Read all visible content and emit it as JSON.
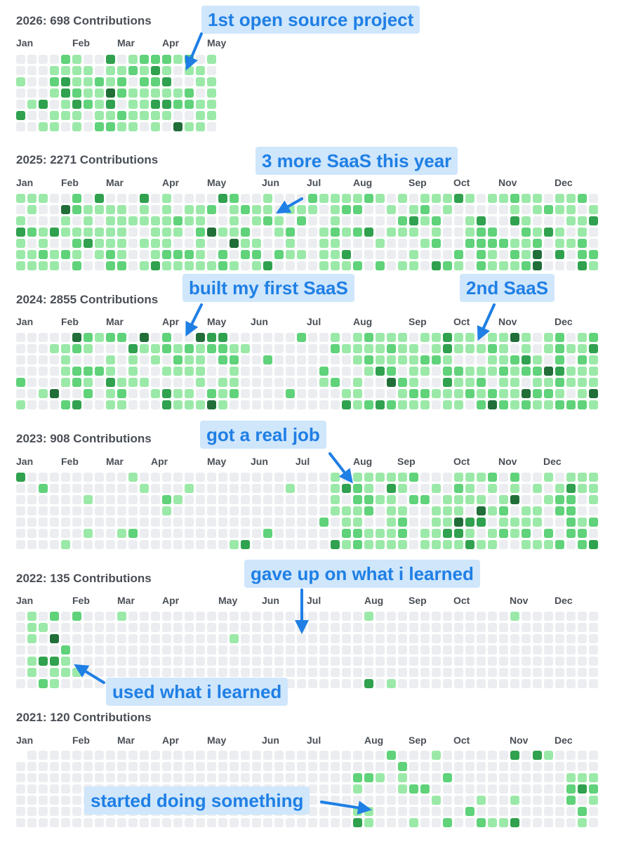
{
  "colors": {
    "empty": "#ebedf0",
    "level1": "#9be9a8",
    "level2": "#5fd27a",
    "level3": "#30a14e",
    "level4": "#216e39",
    "callout_bg": "#cfe6fb",
    "callout_text": "#1f7fe5"
  },
  "years": [
    {
      "title": "2026: 698 Contributions",
      "weeks": 18,
      "months": [
        "Jan",
        "Feb",
        "Mar",
        "Apr",
        "May"
      ]
    },
    {
      "title": "2025: 2271 Contributions",
      "weeks": 52,
      "months": [
        "Jan",
        "Feb",
        "Mar",
        "Apr",
        "May",
        "Jun",
        "Jul",
        "Aug",
        "Sep",
        "Oct",
        "Nov",
        "Dec"
      ]
    },
    {
      "title": "2024: 2855 Contributions",
      "weeks": 52,
      "months": [
        "Jan",
        "Feb",
        "Mar",
        "Apr",
        "May",
        "Jun",
        "Jul",
        "Aug",
        "Sep",
        "Oct",
        "Nov",
        "Dec"
      ]
    },
    {
      "title": "2023: 908 Contributions",
      "weeks": 52,
      "months": [
        "Jan",
        "Feb",
        "Mar",
        "Apr",
        "May",
        "Jun",
        "Jul",
        "Aug",
        "Sep",
        "Oct",
        "Nov",
        "Dec"
      ]
    },
    {
      "title": "2022: 135 Contributions",
      "weeks": 52,
      "months": [
        "Jan",
        "Feb",
        "Mar",
        "Apr",
        "May",
        "Jun",
        "Jul",
        "Aug",
        "Sep",
        "Oct",
        "Nov",
        "Dec"
      ]
    },
    {
      "title": "2021: 120 Contributions",
      "weeks": 52,
      "months": [
        "Jan",
        "Feb",
        "Mar",
        "Apr",
        "May",
        "Jun",
        "Jul",
        "Aug",
        "Sep",
        "Oct",
        "Nov",
        "Dec"
      ]
    }
  ],
  "annotations": {
    "first_open_source": "1st open source project",
    "more_saas": "3 more SaaS this year",
    "first_saas": "built my first SaaS",
    "second_saas": "2nd SaaS",
    "real_job": "got a real job",
    "gave_up": "gave up on what i learned",
    "used_learned": "used what i learned",
    "started": "started doing something"
  }
}
